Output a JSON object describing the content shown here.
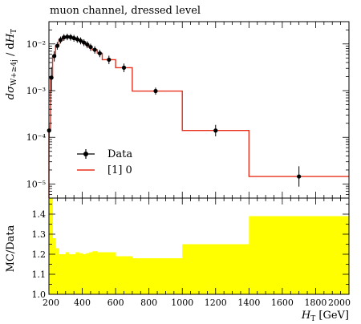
{
  "chart_data": [
    {
      "type": "line",
      "title": "muon channel, dressed level",
      "xlabel": "H_T [GeV]",
      "ylabel": "dσ_W+≥4j / dH_T",
      "yscale": "log",
      "xlim": [
        200,
        2000
      ],
      "ylim": [
        5e-06,
        0.03
      ],
      "y_ticks": [
        "10⁻⁵",
        "10⁻⁴",
        "10⁻³",
        "10⁻²"
      ],
      "legend": {
        "placement": "lower-left",
        "entries": [
          "Data",
          "[1] 0"
        ]
      },
      "colors": {
        "data": "#000000",
        "mc": "#e8301c"
      },
      "series": [
        {
          "name": "Data",
          "points": [
            {
              "x": 201,
              "y": 0.00014,
              "ylo": 0.0001,
              "yhi": 0.00019
            },
            {
              "x": 215,
              "y": 0.0019,
              "ylo": 0.00095,
              "yhi": 0.0032
            },
            {
              "x": 232,
              "y": 0.0055,
              "ylo": 0.0042,
              "yhi": 0.007
            },
            {
              "x": 250,
              "y": 0.0091,
              "ylo": 0.0075,
              "yhi": 0.011
            },
            {
              "x": 270,
              "y": 0.0122,
              "ylo": 0.0102,
              "yhi": 0.0144
            },
            {
              "x": 290,
              "y": 0.0138,
              "ylo": 0.0116,
              "yhi": 0.0162
            },
            {
              "x": 310,
              "y": 0.0142,
              "ylo": 0.012,
              "yhi": 0.0166
            },
            {
              "x": 330,
              "y": 0.014,
              "ylo": 0.0118,
              "yhi": 0.0163
            },
            {
              "x": 350,
              "y": 0.0133,
              "ylo": 0.0112,
              "yhi": 0.0156
            },
            {
              "x": 370,
              "y": 0.0126,
              "ylo": 0.0106,
              "yhi": 0.0148
            },
            {
              "x": 390,
              "y": 0.0117,
              "ylo": 0.0098,
              "yhi": 0.0138
            },
            {
              "x": 410,
              "y": 0.0107,
              "ylo": 0.009,
              "yhi": 0.0126
            },
            {
              "x": 430,
              "y": 0.0097,
              "ylo": 0.0081,
              "yhi": 0.0114
            },
            {
              "x": 450,
              "y": 0.0086,
              "ylo": 0.0071,
              "yhi": 0.0101
            },
            {
              "x": 475,
              "y": 0.0075,
              "ylo": 0.0062,
              "yhi": 0.0089
            },
            {
              "x": 505,
              "y": 0.0063,
              "ylo": 0.0052,
              "yhi": 0.0075
            },
            {
              "x": 560,
              "y": 0.0046,
              "ylo": 0.0037,
              "yhi": 0.0056
            },
            {
              "x": 650,
              "y": 0.0031,
              "ylo": 0.0025,
              "yhi": 0.0038
            },
            {
              "x": 840,
              "y": 0.00098,
              "ylo": 0.00082,
              "yhi": 0.00116
            },
            {
              "x": 1200,
              "y": 0.00014,
              "ylo": 0.000105,
              "yhi": 0.000185
            },
            {
              "x": 1700,
              "y": 1.45e-05,
              "ylo": 8.8e-06,
              "yhi": 2.4e-05
            }
          ]
        },
        {
          "name": "[1] 0",
          "bins": [
            {
              "x0": 200,
              "x1": 210,
              "y": 0.00014
            },
            {
              "x0": 210,
              "x1": 222,
              "y": 0.0019
            },
            {
              "x0": 222,
              "x1": 240,
              "y": 0.0055
            },
            {
              "x0": 240,
              "x1": 260,
              "y": 0.0091
            },
            {
              "x0": 260,
              "x1": 280,
              "y": 0.0122
            },
            {
              "x0": 280,
              "x1": 300,
              "y": 0.0138
            },
            {
              "x0": 300,
              "x1": 320,
              "y": 0.0142
            },
            {
              "x0": 320,
              "x1": 340,
              "y": 0.014
            },
            {
              "x0": 340,
              "x1": 360,
              "y": 0.0133
            },
            {
              "x0": 360,
              "x1": 380,
              "y": 0.0126
            },
            {
              "x0": 380,
              "x1": 400,
              "y": 0.0117
            },
            {
              "x0": 400,
              "x1": 420,
              "y": 0.0107
            },
            {
              "x0": 420,
              "x1": 440,
              "y": 0.0097
            },
            {
              "x0": 440,
              "x1": 460,
              "y": 0.0086
            },
            {
              "x0": 460,
              "x1": 490,
              "y": 0.0075
            },
            {
              "x0": 490,
              "x1": 520,
              "y": 0.0063
            },
            {
              "x0": 520,
              "x1": 600,
              "y": 0.0046
            },
            {
              "x0": 600,
              "x1": 700,
              "y": 0.0031
            },
            {
              "x0": 700,
              "x1": 1000,
              "y": 0.00098
            },
            {
              "x0": 1000,
              "x1": 1400,
              "y": 0.00014
            },
            {
              "x0": 1400,
              "x1": 2000,
              "y": 1.45e-05
            }
          ]
        }
      ]
    },
    {
      "type": "area",
      "xlabel": "H_T [GeV]",
      "ylabel": "MC/Data",
      "xlim": [
        200,
        2000
      ],
      "ylim": [
        1.0,
        1.48
      ],
      "x_ticks": [
        "200",
        "400",
        "600",
        "800",
        "1000",
        "1200",
        "1400",
        "1600",
        "1800",
        "2000"
      ],
      "y_ticks": [
        "1.0",
        "1.1",
        "1.2",
        "1.3",
        "1.4"
      ],
      "colors": {
        "band": "#ffff00"
      },
      "bins": [
        {
          "x0": 200,
          "x1": 222,
          "hi": 1.48
        },
        {
          "x0": 222,
          "x1": 240,
          "hi": 1.28
        },
        {
          "x0": 240,
          "x1": 260,
          "hi": 1.23
        },
        {
          "x0": 260,
          "x1": 280,
          "hi": 1.2
        },
        {
          "x0": 280,
          "x1": 300,
          "hi": 1.2
        },
        {
          "x0": 300,
          "x1": 320,
          "hi": 1.21
        },
        {
          "x0": 320,
          "x1": 340,
          "hi": 1.2
        },
        {
          "x0": 340,
          "x1": 360,
          "hi": 1.2
        },
        {
          "x0": 360,
          "x1": 380,
          "hi": 1.21
        },
        {
          "x0": 380,
          "x1": 400,
          "hi": 1.205
        },
        {
          "x0": 400,
          "x1": 420,
          "hi": 1.2
        },
        {
          "x0": 420,
          "x1": 440,
          "hi": 1.205
        },
        {
          "x0": 440,
          "x1": 460,
          "hi": 1.21
        },
        {
          "x0": 460,
          "x1": 490,
          "hi": 1.215
        },
        {
          "x0": 490,
          "x1": 520,
          "hi": 1.21
        },
        {
          "x0": 520,
          "x1": 600,
          "hi": 1.21
        },
        {
          "x0": 600,
          "x1": 700,
          "hi": 1.19
        },
        {
          "x0": 700,
          "x1": 1000,
          "hi": 1.18
        },
        {
          "x0": 1000,
          "x1": 1400,
          "hi": 1.25
        },
        {
          "x0": 1400,
          "x1": 2000,
          "hi": 1.39
        }
      ]
    }
  ]
}
